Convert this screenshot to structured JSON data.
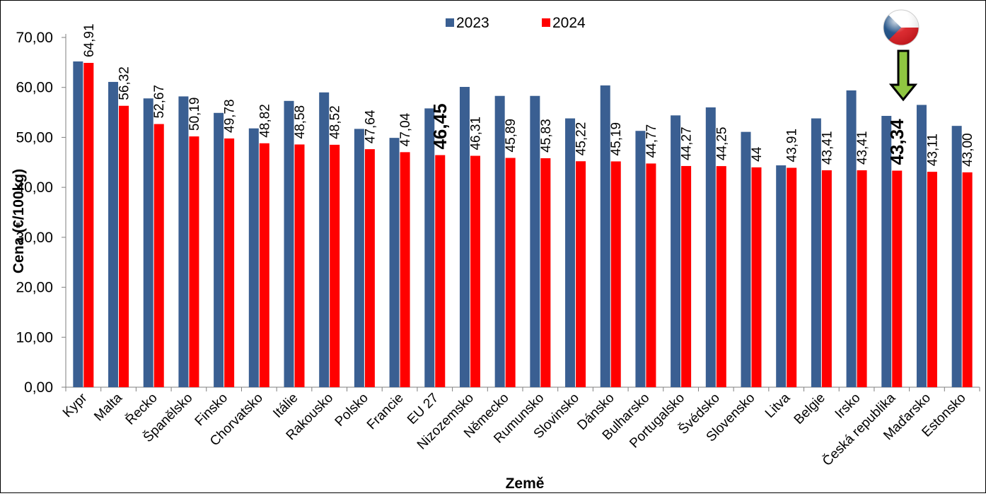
{
  "colors": {
    "series_2023": "#3A5F92",
    "series_2024": "#FF0000",
    "arrow_fill": "#8FC641",
    "flag_icon": "czech-flag-icon"
  },
  "chart_data": {
    "type": "bar",
    "xlabel": "Země",
    "ylabel": "Cena (€/100kg)",
    "ylim": [
      0,
      70
    ],
    "yticks": [
      "0,00",
      "10,00",
      "20,00",
      "30,00",
      "40,00",
      "50,00",
      "60,00",
      "70,00"
    ],
    "legend_position": "top-center",
    "grid": false,
    "categories": [
      "Kypr",
      "Malta",
      "Řecko",
      "Španělsko",
      "Finsko",
      "Chorvatsko",
      "Itálie",
      "Rakousko",
      "Polsko",
      "Francie",
      "EU 27",
      "Nizozemsko",
      "Německo",
      "Rumunsko",
      "Slovinsko",
      "Dánsko",
      "Bulharsko",
      "Portugalsko",
      "Švédsko",
      "Slovensko",
      "Litva",
      "Belgie",
      "Irsko",
      "Česká republika",
      "Maďarsko",
      "Estonsko"
    ],
    "series": [
      {
        "name": "2023",
        "values": [
          65.2,
          61.1,
          57.8,
          58.2,
          54.9,
          51.8,
          57.3,
          59.0,
          51.7,
          49.9,
          55.8,
          60.1,
          58.3,
          58.3,
          53.8,
          60.4,
          51.3,
          54.4,
          56.0,
          51.1,
          44.4,
          53.8,
          59.4,
          54.3,
          56.5,
          52.3
        ]
      },
      {
        "name": "2024",
        "values": [
          64.91,
          56.32,
          52.67,
          50.19,
          49.78,
          48.82,
          48.58,
          48.52,
          47.64,
          47.04,
          46.45,
          46.31,
          45.89,
          45.83,
          45.22,
          45.19,
          44.77,
          44.27,
          44.25,
          44.0,
          43.91,
          43.41,
          43.41,
          43.34,
          43.11,
          43.0
        ]
      }
    ],
    "data_labels_2024": [
      "64,91",
      "56,32",
      "52,67",
      "50,19",
      "49,78",
      "48,82",
      "48,58",
      "48,52",
      "47,64",
      "47,04",
      "46,45",
      "46,31",
      "45,89",
      "45,83",
      "45,22",
      "45,19",
      "44,77",
      "44,27",
      "44,25",
      "44",
      "43,91",
      "43,41",
      "43,41",
      "43,34",
      "43,11",
      "43,00"
    ],
    "highlighted_labels": [
      "EU 27",
      "Česká republika"
    ]
  }
}
